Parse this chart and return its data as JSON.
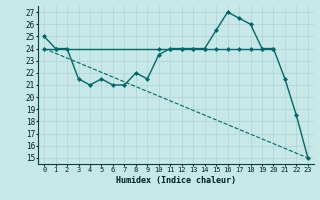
{
  "xlabel": "Humidex (Indice chaleur)",
  "background_color": "#c8e8e8",
  "grid_color": "#b0d8d8",
  "line_color": "#006868",
  "xlim": [
    -0.5,
    23.5
  ],
  "ylim": [
    14.5,
    27.5
  ],
  "yticks": [
    15,
    16,
    17,
    18,
    19,
    20,
    21,
    22,
    23,
    24,
    25,
    26,
    27
  ],
  "xticks": [
    0,
    1,
    2,
    3,
    4,
    5,
    6,
    7,
    8,
    9,
    10,
    11,
    12,
    13,
    14,
    15,
    16,
    17,
    18,
    19,
    20,
    21,
    22,
    23
  ],
  "series": [
    {
      "x": [
        0,
        1,
        2,
        3,
        4,
        5,
        6,
        7,
        8,
        9,
        10,
        11,
        12,
        13,
        14,
        15,
        16,
        17,
        18,
        19,
        20,
        21,
        22,
        23
      ],
      "y": [
        25.0,
        24.0,
        24.0,
        21.5,
        21.0,
        21.5,
        21.0,
        21.0,
        22.0,
        21.5,
        23.5,
        24.0,
        24.0,
        24.0,
        24.0,
        25.5,
        27.0,
        26.5,
        26.0,
        24.0,
        24.0,
        21.5,
        18.5,
        15.0
      ],
      "style": "-",
      "marker": "D",
      "markersize": 2.0,
      "linewidth": 1.0
    },
    {
      "x": [
        0,
        1,
        10,
        11,
        12,
        13,
        14,
        15,
        16,
        17,
        18,
        19,
        20
      ],
      "y": [
        24.0,
        24.0,
        24.0,
        24.0,
        24.0,
        24.0,
        24.0,
        24.0,
        24.0,
        24.0,
        24.0,
        24.0,
        24.0
      ],
      "style": "-",
      "marker": "D",
      "markersize": 2.0,
      "linewidth": 1.0
    },
    {
      "x": [
        0,
        23
      ],
      "y": [
        24.0,
        15.0
      ],
      "style": "--",
      "marker": null,
      "markersize": 0,
      "linewidth": 0.8
    }
  ]
}
